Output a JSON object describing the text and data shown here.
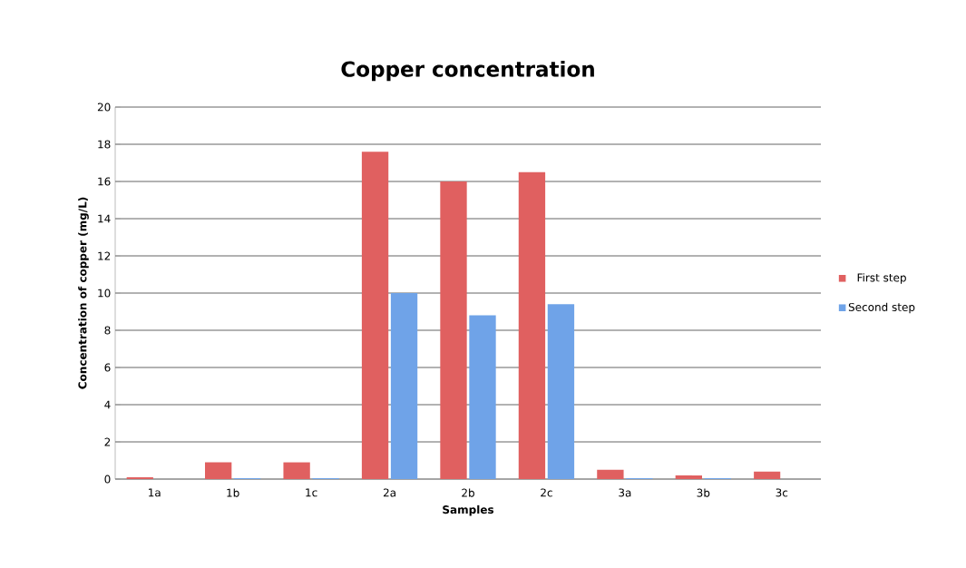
{
  "chart_data": {
    "type": "bar",
    "title": "Copper concentration",
    "xlabel": "Samples",
    "ylabel": "Concentration of copper (mg/L)",
    "categories": [
      "1a",
      "1b",
      "1c",
      "2a",
      "2b",
      "2c",
      "3a",
      "3b",
      "3c"
    ],
    "series": [
      {
        "name": "First step",
        "color": "#e06060",
        "values": [
          0.1,
          0.9,
          0.9,
          17.6,
          16.0,
          16.5,
          0.5,
          0.2,
          0.4
        ]
      },
      {
        "name": "Second step",
        "color": "#6fa3e8",
        "values": [
          0,
          0.05,
          0.05,
          10.0,
          8.8,
          9.4,
          0.05,
          0.05,
          0
        ]
      }
    ],
    "ylim": [
      0,
      20
    ],
    "yticks": [
      0,
      2,
      4,
      6,
      8,
      10,
      12,
      14,
      16,
      18,
      20
    ],
    "grid": "y",
    "legend": "right"
  }
}
